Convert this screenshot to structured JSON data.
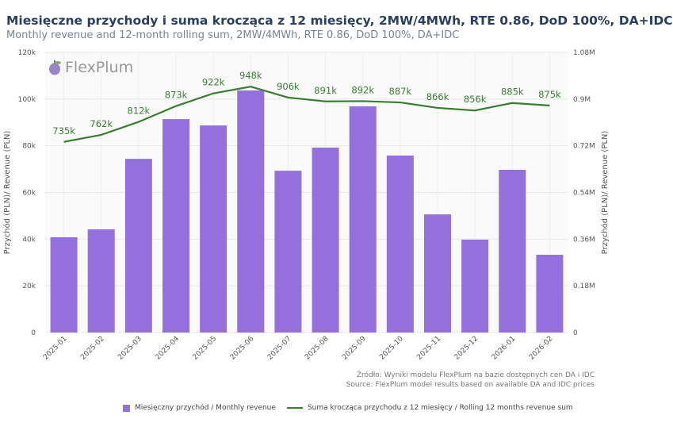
{
  "chart_data": {
    "type": "bar+line",
    "title": "Miesięczne przychody i suma krocząca z 12 miesięcy, 2MW/4MWh, RTE 0.86, DoD 100%, DA+IDC",
    "subtitle": "Monthly revenue and 12-month rolling sum, 2MW/4MWh, RTE 0.86, DoD 100%, DA+IDC",
    "categories": [
      "2025-01",
      "2025-02",
      "2025-03",
      "2025-04",
      "2025-05",
      "2025-06",
      "2025-07",
      "2025-08",
      "2025-09",
      "2025-10",
      "2025-11",
      "2025-12",
      "2026-01",
      "2026-02"
    ],
    "series": [
      {
        "name": "Miesięczny przychód / Monthly revenue",
        "type": "bar",
        "axis": "left",
        "color": "#9370DB",
        "values": [
          40800,
          44200,
          74400,
          91400,
          88700,
          103700,
          69300,
          79200,
          96900,
          75800,
          50600,
          39800,
          69700,
          33300
        ]
      },
      {
        "name": "Suma krocząca przychodu z 12 miesięcy / Rolling 12 months revenue sum",
        "type": "line",
        "axis": "right",
        "color": "#3a7d33",
        "values": [
          735000,
          762000,
          812000,
          873000,
          922000,
          948000,
          906000,
          891000,
          892000,
          887000,
          866000,
          856000,
          885000,
          875000
        ],
        "labels": [
          "735k",
          "762k",
          "812k",
          "873k",
          "922k",
          "948k",
          "906k",
          "891k",
          "892k",
          "887k",
          "866k",
          "856k",
          "885k",
          "875k"
        ]
      }
    ],
    "ylabel": "Przychód (PLN)/ Revenue (PLN)",
    "y2label": "Przychód (PLN)/ Revenue (PLN)",
    "ylim": [
      0,
      120000
    ],
    "y2lim": [
      0,
      1080000
    ],
    "yticks": [
      "0",
      "20k",
      "40k",
      "60k",
      "80k",
      "100k",
      "120k"
    ],
    "y2ticks": [
      "0",
      "0.18M",
      "0.36M",
      "0.54M",
      "0.72M",
      "0.9M",
      "1.08M"
    ],
    "grid": true,
    "legend": "bottom"
  },
  "logo": "FlexPlum",
  "source": {
    "line1": "Źródło: Wyniki modelu FlexPlum na bazie dostępnych cen DA i IDC",
    "line2": "Source: FlexPlum model results based on available DA and IDC prices"
  }
}
